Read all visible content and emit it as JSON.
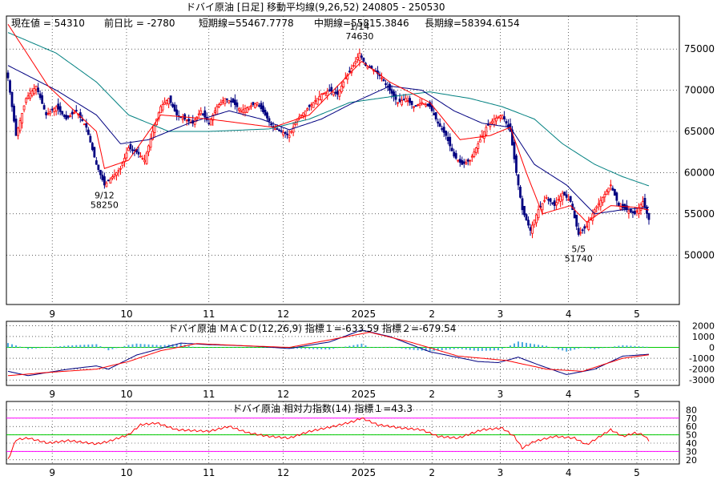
{
  "title": "ドバイ原油 [日足]  移動平均線(9,26,52)  240805 - 250530",
  "info_line": {
    "current": "現在値 = 54310",
    "prev_diff": "前日比 = -2780",
    "short_ma": "短期線=55467.7778",
    "mid_ma": "中期線=55815.3846",
    "long_ma": "長期線=58394.6154"
  },
  "macd_title": "ドバイ原油  ＭＡＣＤ(12,26,9) 指標１=-633.59  指標２=-679.54",
  "rsi_title": "ドバイ原油  相対力指数(14) 指標１=43.3",
  "colors": {
    "up": "#ff0000",
    "down": "#000080",
    "short_ma": "#ff0000",
    "mid_ma": "#000080",
    "long_ma": "#008080",
    "macd_bar": "#4aa8e0",
    "macd_line": "#000080",
    "signal_line": "#ff0000",
    "rsi_line": "#ff0000",
    "rsi_band": "#ff00ff",
    "rsi_mid": "#00cc00"
  },
  "chart_data": [
    {
      "type": "candlestick",
      "name": "price",
      "x_labels": [
        "9",
        "10",
        "11",
        "12",
        "2025",
        "2",
        "3",
        "4",
        "5"
      ],
      "ylim": [
        44000,
        79000
      ],
      "y_ticks": [
        50000,
        55000,
        60000,
        65000,
        70000,
        75000
      ],
      "annotations": [
        {
          "date": "1/14",
          "value": "74630"
        },
        {
          "date": "9/12",
          "value": "58250"
        },
        {
          "date": "5/5",
          "value": "51740"
        }
      ],
      "close_anchors": [
        [
          0,
          71500
        ],
        [
          4,
          64500
        ],
        [
          9,
          69000
        ],
        [
          14,
          70500
        ],
        [
          19,
          67000
        ],
        [
          24,
          68000
        ],
        [
          29,
          66500
        ],
        [
          34,
          67500
        ],
        [
          39,
          65500
        ],
        [
          44,
          61000
        ],
        [
          48,
          58500
        ],
        [
          52,
          59500
        ],
        [
          56,
          60500
        ],
        [
          60,
          63000
        ],
        [
          64,
          62500
        ],
        [
          68,
          61500
        ],
        [
          72,
          65000
        ],
        [
          76,
          68000
        ],
        [
          80,
          69000
        ],
        [
          84,
          67000
        ],
        [
          88,
          66500
        ],
        [
          92,
          66000
        ],
        [
          96,
          67500
        ],
        [
          100,
          66000
        ],
        [
          104,
          68000
        ],
        [
          108,
          69000
        ],
        [
          112,
          68500
        ],
        [
          116,
          67500
        ],
        [
          120,
          68000
        ],
        [
          124,
          68500
        ],
        [
          128,
          67000
        ],
        [
          132,
          65500
        ],
        [
          136,
          65000
        ],
        [
          140,
          64500
        ],
        [
          144,
          66500
        ],
        [
          148,
          67500
        ],
        [
          152,
          68500
        ],
        [
          156,
          69500
        ],
        [
          160,
          70000
        ],
        [
          164,
          69500
        ],
        [
          168,
          71500
        ],
        [
          172,
          73000
        ],
        [
          175,
          74500
        ],
        [
          178,
          73000
        ],
        [
          182,
          72500
        ],
        [
          186,
          71500
        ],
        [
          190,
          70000
        ],
        [
          194,
          68500
        ],
        [
          198,
          69000
        ],
        [
          202,
          68000
        ],
        [
          206,
          68500
        ],
        [
          210,
          68000
        ],
        [
          214,
          66000
        ],
        [
          218,
          64500
        ],
        [
          222,
          62000
        ],
        [
          226,
          61000
        ],
        [
          230,
          61500
        ],
        [
          234,
          63500
        ],
        [
          238,
          65500
        ],
        [
          242,
          66500
        ],
        [
          246,
          67000
        ],
        [
          250,
          65000
        ],
        [
          253,
          60000
        ],
        [
          256,
          55500
        ],
        [
          260,
          53000
        ],
        [
          264,
          55500
        ],
        [
          268,
          57000
        ],
        [
          272,
          56000
        ],
        [
          276,
          57500
        ],
        [
          280,
          56500
        ],
        [
          284,
          52500
        ],
        [
          288,
          53500
        ],
        [
          292,
          55500
        ],
        [
          296,
          57000
        ],
        [
          300,
          58500
        ],
        [
          304,
          56000
        ],
        [
          308,
          55500
        ],
        [
          312,
          55000
        ],
        [
          316,
          56500
        ],
        [
          319,
          54310
        ]
      ],
      "short_ma": [
        [
          0,
          78000
        ],
        [
          20,
          70500
        ],
        [
          44,
          65000
        ],
        [
          48,
          60500
        ],
        [
          60,
          61500
        ],
        [
          76,
          67000
        ],
        [
          100,
          66500
        ],
        [
          132,
          65500
        ],
        [
          150,
          67000
        ],
        [
          176,
          73500
        ],
        [
          190,
          71000
        ],
        [
          210,
          68500
        ],
        [
          225,
          64000
        ],
        [
          240,
          64500
        ],
        [
          250,
          65500
        ],
        [
          258,
          60000
        ],
        [
          266,
          55000
        ],
        [
          280,
          56000
        ],
        [
          288,
          54000
        ],
        [
          300,
          56000
        ],
        [
          312,
          55800
        ],
        [
          319,
          55468
        ]
      ],
      "mid_ma": [
        [
          0,
          73000
        ],
        [
          24,
          70000
        ],
        [
          44,
          67000
        ],
        [
          56,
          63500
        ],
        [
          70,
          64000
        ],
        [
          90,
          66000
        ],
        [
          110,
          67500
        ],
        [
          126,
          66500
        ],
        [
          140,
          65200
        ],
        [
          156,
          66500
        ],
        [
          172,
          68500
        ],
        [
          190,
          70500
        ],
        [
          206,
          70000
        ],
        [
          222,
          67500
        ],
        [
          236,
          66000
        ],
        [
          250,
          65500
        ],
        [
          262,
          61000
        ],
        [
          278,
          58500
        ],
        [
          292,
          55000
        ],
        [
          306,
          55500
        ],
        [
          319,
          55815
        ]
      ],
      "long_ma": [
        [
          0,
          77000
        ],
        [
          24,
          74500
        ],
        [
          44,
          71000
        ],
        [
          60,
          67000
        ],
        [
          80,
          65000
        ],
        [
          100,
          65000
        ],
        [
          130,
          65300
        ],
        [
          150,
          66500
        ],
        [
          170,
          68500
        ],
        [
          190,
          69200
        ],
        [
          210,
          69800
        ],
        [
          230,
          69000
        ],
        [
          246,
          68000
        ],
        [
          262,
          66500
        ],
        [
          276,
          63500
        ],
        [
          292,
          61000
        ],
        [
          306,
          59500
        ],
        [
          319,
          58395
        ]
      ]
    },
    {
      "type": "macd",
      "name": "ＭＡＣＤ(12,26,9)",
      "ylim": [
        -3500,
        2400
      ],
      "y_ticks": [
        2000,
        1000,
        0,
        -1000,
        -2000,
        -3000
      ],
      "macd": [
        [
          0,
          -2200
        ],
        [
          10,
          -2600
        ],
        [
          30,
          -2000
        ],
        [
          44,
          -1700
        ],
        [
          50,
          -2000
        ],
        [
          64,
          -700
        ],
        [
          76,
          -100
        ],
        [
          86,
          400
        ],
        [
          100,
          250
        ],
        [
          110,
          200
        ],
        [
          124,
          100
        ],
        [
          140,
          -100
        ],
        [
          160,
          500
        ],
        [
          176,
          1600
        ],
        [
          190,
          1000
        ],
        [
          210,
          -400
        ],
        [
          234,
          -1300
        ],
        [
          244,
          -1400
        ],
        [
          254,
          -900
        ],
        [
          264,
          -1600
        ],
        [
          278,
          -2500
        ],
        [
          292,
          -2000
        ],
        [
          306,
          -800
        ],
        [
          319,
          -634
        ]
      ],
      "signal": [
        [
          0,
          -2600
        ],
        [
          20,
          -2300
        ],
        [
          44,
          -2000
        ],
        [
          60,
          -1300
        ],
        [
          76,
          -300
        ],
        [
          94,
          350
        ],
        [
          118,
          150
        ],
        [
          140,
          0
        ],
        [
          166,
          900
        ],
        [
          180,
          1400
        ],
        [
          200,
          500
        ],
        [
          224,
          -800
        ],
        [
          248,
          -1200
        ],
        [
          268,
          -2000
        ],
        [
          286,
          -2200
        ],
        [
          306,
          -1000
        ],
        [
          319,
          -680
        ]
      ]
    },
    {
      "type": "rsi",
      "name": "相対力指数(14)",
      "ylim": [
        15,
        90
      ],
      "y_ticks": [
        80,
        70,
        60,
        50,
        40,
        30,
        20
      ],
      "bands": [
        30,
        50,
        70
      ],
      "values": [
        [
          0,
          20
        ],
        [
          4,
          44
        ],
        [
          10,
          46
        ],
        [
          20,
          40
        ],
        [
          30,
          43
        ],
        [
          44,
          39
        ],
        [
          50,
          42
        ],
        [
          60,
          50
        ],
        [
          66,
          62
        ],
        [
          74,
          64
        ],
        [
          84,
          56
        ],
        [
          100,
          54
        ],
        [
          110,
          60
        ],
        [
          120,
          52
        ],
        [
          130,
          48
        ],
        [
          140,
          46
        ],
        [
          150,
          54
        ],
        [
          162,
          60
        ],
        [
          172,
          66
        ],
        [
          176,
          70
        ],
        [
          184,
          62
        ],
        [
          196,
          58
        ],
        [
          206,
          56
        ],
        [
          214,
          48
        ],
        [
          224,
          46
        ],
        [
          236,
          56
        ],
        [
          246,
          58
        ],
        [
          252,
          48
        ],
        [
          256,
          34
        ],
        [
          262,
          42
        ],
        [
          272,
          48
        ],
        [
          282,
          46
        ],
        [
          288,
          38
        ],
        [
          300,
          56
        ],
        [
          306,
          48
        ],
        [
          312,
          52
        ],
        [
          316,
          50
        ],
        [
          319,
          43.3
        ]
      ]
    }
  ]
}
